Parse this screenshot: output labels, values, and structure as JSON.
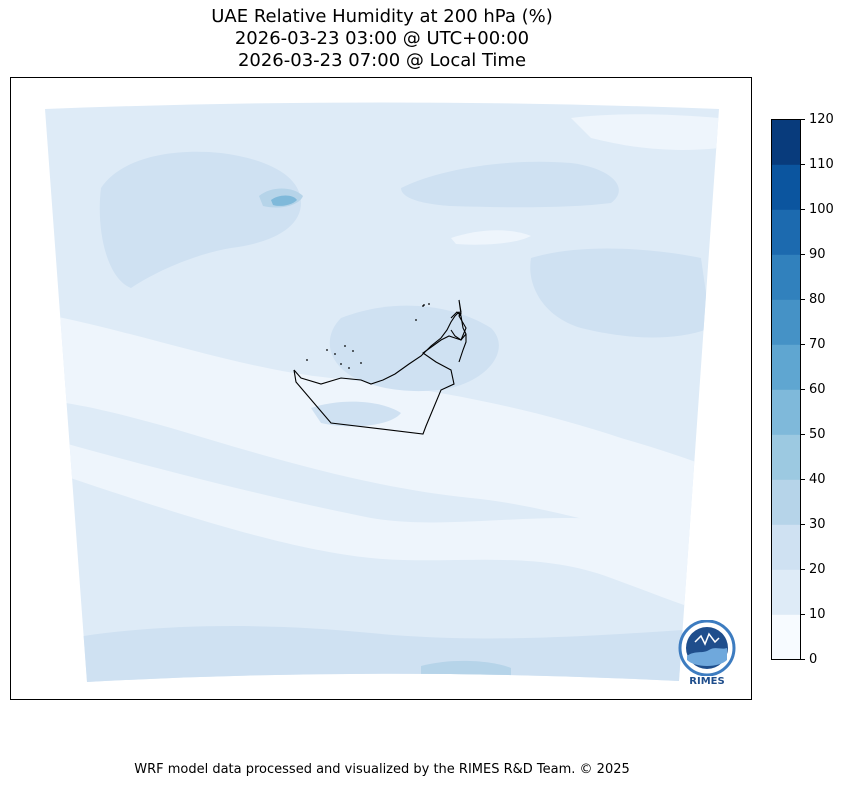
{
  "title": {
    "line1": "UAE Relative Humidity at 200 hPa (%)",
    "line2": "2026-03-23 03:00 @ UTC+00:00",
    "line3": "2026-03-23 07:00 @ Local Time"
  },
  "colorbar": {
    "ticks": [
      "0",
      "10",
      "20",
      "30",
      "40",
      "50",
      "60",
      "70",
      "80",
      "90",
      "100",
      "110",
      "120"
    ],
    "colors": [
      "#f7fbff",
      "#deebf7",
      "#cfe1f2",
      "#b6d4e9",
      "#9cc9e1",
      "#7fb9da",
      "#5fa6d1",
      "#4592c6",
      "#3181bd",
      "#1c6aaf",
      "#0b559f",
      "#083b7c"
    ]
  },
  "logo": {
    "text": "RIMES"
  },
  "footer": "WRF model data processed and visualized by the RIMES R&D Team. © 2025"
}
